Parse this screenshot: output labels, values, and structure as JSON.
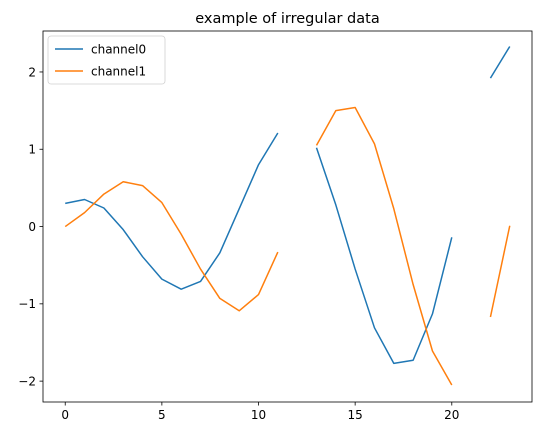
{
  "chart_data": {
    "type": "line",
    "title": "example of irregular data",
    "xlabel": "",
    "ylabel": "",
    "xlim": [
      -1.15,
      24.15
    ],
    "ylim": [
      -2.27,
      2.53
    ],
    "xticks": [
      0,
      5,
      10,
      15,
      20
    ],
    "yticks": [
      -2,
      -1,
      0,
      1,
      2
    ],
    "ytick_labels": [
      "−2",
      "−1",
      "0",
      "1",
      "2"
    ],
    "grid": false,
    "legend": "upper left",
    "x": [
      0,
      1,
      2,
      3,
      4,
      5,
      6,
      7,
      8,
      9,
      10,
      11,
      12,
      13,
      14,
      15,
      16,
      17,
      18,
      19,
      20,
      21,
      22,
      23
    ],
    "series": [
      {
        "name": "channel0",
        "color": "#1f77b4",
        "values": [
          0.3,
          0.35,
          0.24,
          -0.04,
          -0.39,
          -0.68,
          -0.81,
          -0.71,
          -0.34,
          0.23,
          0.8,
          1.21,
          null,
          1.02,
          0.28,
          -0.55,
          -1.31,
          -1.77,
          -1.73,
          -1.13,
          -0.14,
          null,
          1.92,
          2.33
        ]
      },
      {
        "name": "channel1",
        "color": "#ff7f0e",
        "values": [
          0.0,
          0.18,
          0.42,
          0.58,
          0.53,
          0.31,
          -0.1,
          -0.55,
          -0.93,
          -1.09,
          -0.88,
          -0.33,
          null,
          1.05,
          1.5,
          1.54,
          1.07,
          0.23,
          -0.75,
          -1.61,
          -2.05,
          null,
          -1.17,
          0.01
        ]
      }
    ]
  }
}
